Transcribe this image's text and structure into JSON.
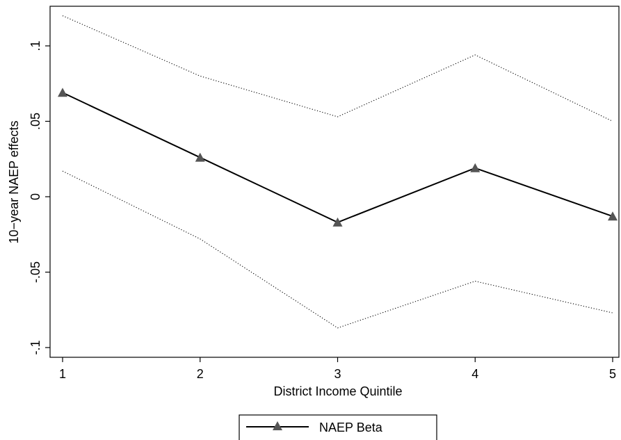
{
  "chart_data": {
    "type": "line",
    "x": [
      1,
      2,
      3,
      4,
      5
    ],
    "xlabel": "District Income Quintile",
    "ylabel": "10−year NAEP effects",
    "xlim": [
      1,
      5
    ],
    "ylim": [
      -0.1,
      0.12
    ],
    "xticks": [
      1,
      2,
      3,
      4,
      5
    ],
    "xtick_labels": [
      "1",
      "2",
      "3",
      "4",
      "5"
    ],
    "yticks": [
      -0.1,
      -0.05,
      0,
      0.05,
      0.1
    ],
    "ytick_labels": [
      "-.1",
      "-.05",
      "0",
      ".05",
      ".1"
    ],
    "grid": false,
    "legend_position": "bottom",
    "series": [
      {
        "name": "NAEP Beta",
        "values": [
          0.069,
          0.026,
          -0.017,
          0.019,
          -0.013
        ],
        "color": "#000000",
        "marker": "triangle",
        "marker_color": "#555555",
        "style": "solid"
      },
      {
        "name": "",
        "values": [
          0.12,
          0.08,
          0.053,
          0.094,
          0.05
        ],
        "color": "#000000",
        "style": "dotted"
      },
      {
        "name": "",
        "values": [
          0.017,
          -0.028,
          -0.087,
          -0.056,
          -0.077
        ],
        "color": "#000000",
        "style": "dotted"
      }
    ]
  }
}
